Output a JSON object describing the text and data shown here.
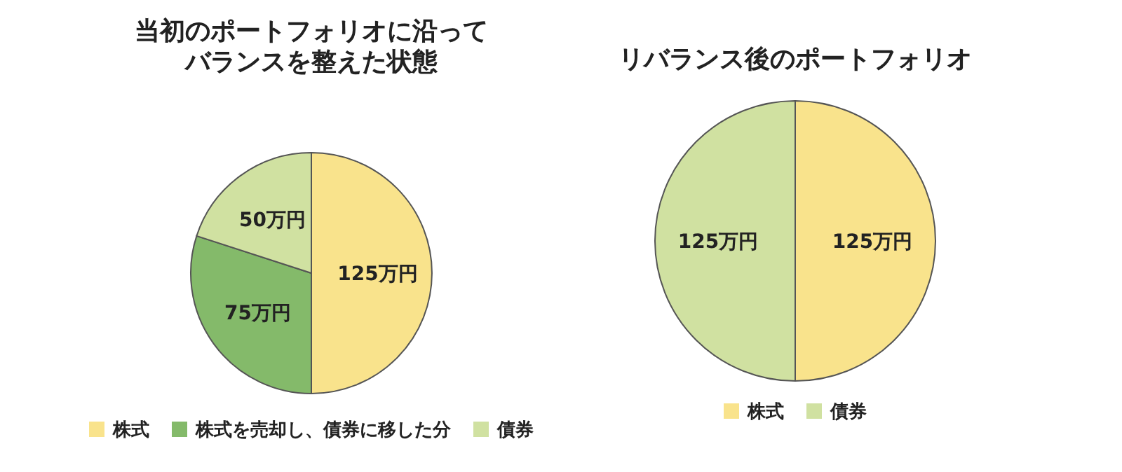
{
  "chart_data": [
    {
      "type": "pie",
      "title": "当初のポートフォリオに沿ってバランスを整えた状態",
      "categories": [
        "株式",
        "株式を売却し、債券に移した分",
        "債券"
      ],
      "values": [
        125,
        75,
        50
      ],
      "colors": [
        "#f9e38c",
        "#84ba6a",
        "#d0e1a1"
      ],
      "value_labels": [
        "125万円",
        "75万円",
        "50万円"
      ],
      "legend": "bottom"
    },
    {
      "type": "pie",
      "title": "リバランス後のポートフォリオ",
      "categories": [
        "株式",
        "債券"
      ],
      "values": [
        125,
        125
      ],
      "colors": [
        "#f9e38c",
        "#d0e1a1"
      ],
      "value_labels": [
        "125万円",
        "125万円"
      ],
      "legend": "bottom"
    }
  ]
}
